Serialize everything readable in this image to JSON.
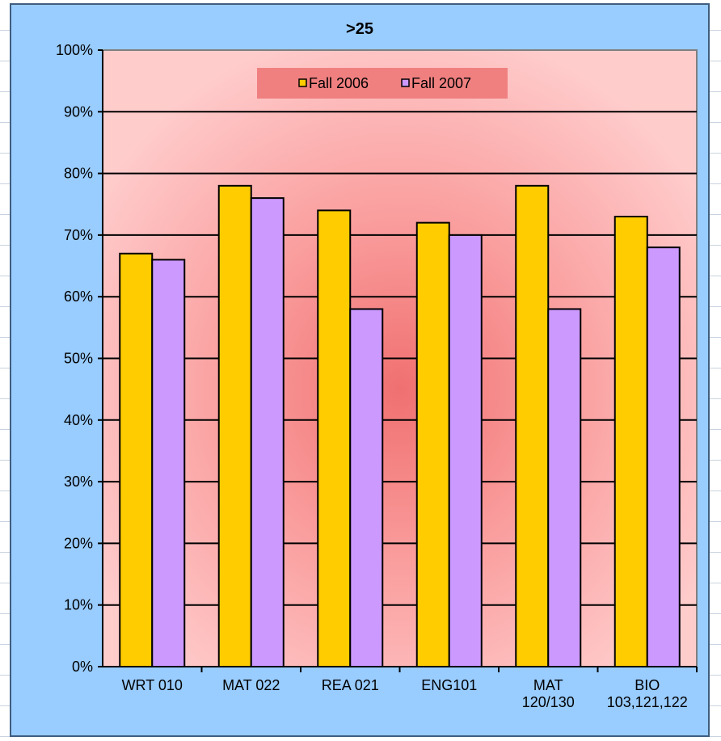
{
  "chart_data": {
    "type": "bar",
    "title": ">25",
    "categories": [
      [
        "WRT 010"
      ],
      [
        "MAT 022"
      ],
      [
        "REA 021"
      ],
      [
        "ENG101"
      ],
      [
        "MAT",
        "120/130"
      ],
      [
        "BIO",
        "103,121,122"
      ]
    ],
    "series": [
      {
        "name": "Fall 2006",
        "color": "#ffcc00",
        "values": [
          67,
          78,
          74,
          72,
          78,
          73
        ]
      },
      {
        "name": "Fall 2007",
        "color": "#cc99ff",
        "values": [
          66,
          76,
          58,
          70,
          58,
          68
        ]
      }
    ],
    "y_ticks": [
      "0%",
      "10%",
      "20%",
      "30%",
      "40%",
      "50%",
      "60%",
      "70%",
      "80%",
      "90%",
      "100%"
    ],
    "ylim": [
      0,
      100
    ],
    "grid": true,
    "legend_position": "top-center",
    "colors": {
      "frame_background": "#99ccff",
      "plot_background": "#ffcccc",
      "plot_center_glow": "#f07070",
      "gridline": "#000000"
    }
  }
}
